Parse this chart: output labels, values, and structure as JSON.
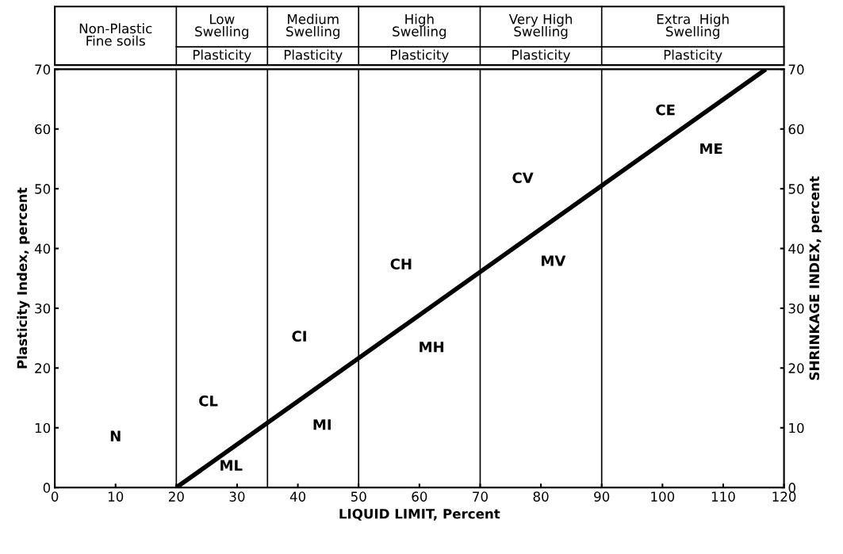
{
  "chart_data": {
    "type": "line",
    "xlabel": "LIQUID LIMIT, Percent",
    "ylabel": "Plasticity Index, percent",
    "y2label": "SHRINKAGE INDEX, percent",
    "xlim": [
      0,
      120
    ],
    "xticks": [
      0,
      10,
      20,
      30,
      40,
      50,
      60,
      70,
      80,
      90,
      100,
      110,
      120
    ],
    "ylim": [
      0,
      70
    ],
    "yticks": [
      0,
      10,
      20,
      30,
      40,
      50,
      60,
      70
    ],
    "y2lim": [
      0,
      70
    ],
    "y2ticks": [
      0,
      10,
      20,
      30,
      40,
      50,
      60,
      70
    ],
    "grid": false,
    "marker": "none",
    "line_style": "solid",
    "series": [
      {
        "color": "#000000",
        "x": [
          20,
          117
        ],
        "values": [
          0,
          70
        ]
      }
    ],
    "ref_lines": [
      {
        "axis": "x",
        "value": 20,
        "color": "#000000"
      },
      {
        "axis": "x",
        "value": 35,
        "color": "#000000"
      },
      {
        "axis": "x",
        "value": 50,
        "color": "#000000"
      },
      {
        "axis": "x",
        "value": 70,
        "color": "#000000"
      },
      {
        "axis": "x",
        "value": 90,
        "color": "#000000"
      }
    ],
    "annotations": [
      "Non-Plastic\nFine soils",
      "Low\nSwelling",
      "Medium\nSwelling",
      "High\nSwelling",
      "Very High\nSwelling",
      "Extra  High\nSwelling",
      "Plasticity",
      "Plasticity",
      "Plasticity",
      "Plasticity",
      "Plasticity",
      "N",
      "CL",
      "ML",
      "CI",
      "MI",
      "CH",
      "MH",
      "CV",
      "MV",
      "CE",
      "ME"
    ]
  }
}
